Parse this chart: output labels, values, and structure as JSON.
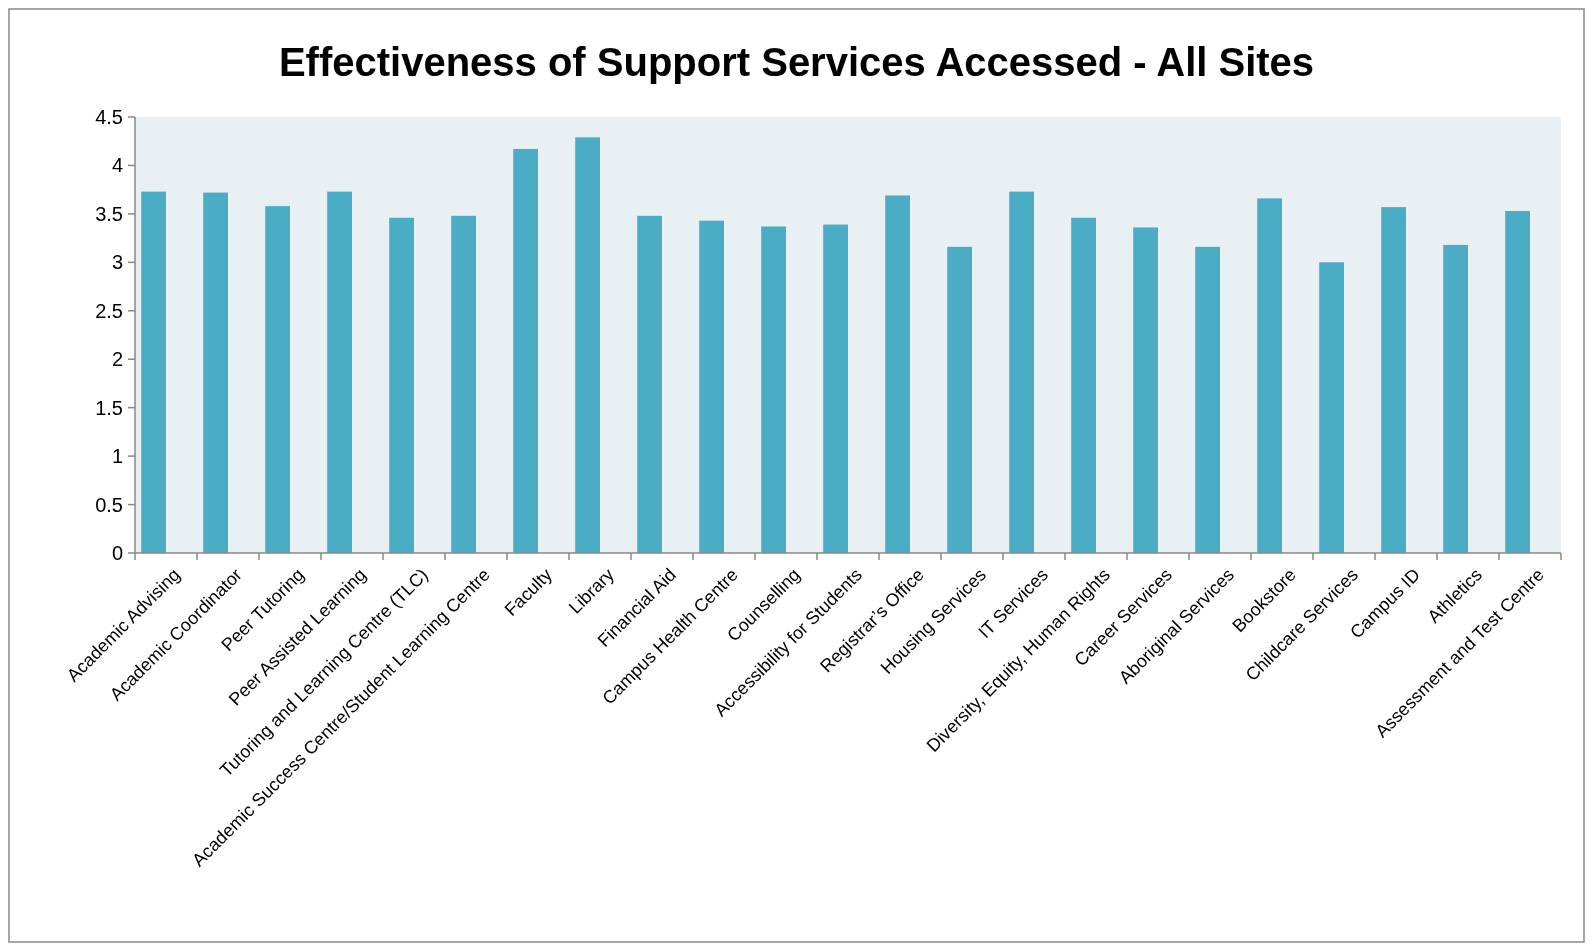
{
  "chart_data": {
    "type": "bar",
    "title": "Effectiveness of Support Services Accessed - All Sites",
    "categories": [
      "Academic Advising",
      "Academic Coordinator",
      "Peer Tutoring",
      "Peer Assisted Learning",
      "Tutoring and Learning Centre (TLC)",
      "Academic Success Centre/Student Learning Centre",
      "Faculty",
      "Library",
      "Financial Aid",
      "Campus Health Centre",
      "Counselling",
      "Accessibility for Students",
      "Registrar’s Office",
      "Housing Services",
      "IT Services",
      "Diversity, Equity, Human Rights",
      "Career Services",
      "Aboriginal Services",
      "Bookstore",
      "Childcare Services",
      "Campus ID",
      "Athletics",
      "Assessment and Test Centre"
    ],
    "values": [
      3.73,
      3.72,
      3.58,
      3.73,
      3.46,
      3.48,
      4.17,
      4.29,
      3.48,
      3.43,
      3.37,
      3.39,
      3.69,
      3.16,
      3.73,
      3.46,
      3.36,
      3.16,
      3.66,
      3.0,
      3.57,
      3.18,
      3.53
    ],
    "color": "#4bacc6",
    "ylim": [
      0,
      4.5
    ],
    "yticks": [
      0,
      {
        "value": 0.5,
        "label": "0.5"
      },
      1,
      {
        "value": 1.5,
        "label": "1.5"
      },
      2,
      {
        "value": 2.5,
        "label": "2.5"
      },
      3,
      {
        "value": 3.5,
        "label": "3.5"
      },
      4,
      {
        "value": 4.5,
        "label": "4.5"
      }
    ],
    "grid": false
  }
}
